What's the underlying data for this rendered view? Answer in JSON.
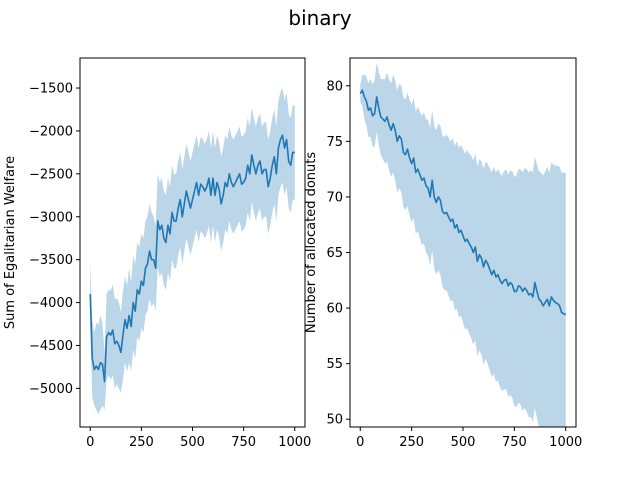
{
  "figure": {
    "title": "binary"
  },
  "chart_data": [
    {
      "type": "line",
      "title": "",
      "xlabel": "",
      "ylabel": "Sum of Egalitarian Welfare",
      "xlim": [
        -50,
        1050
      ],
      "ylim": [
        -5450,
        -1150
      ],
      "xticks": [
        0,
        250,
        500,
        750,
        1000
      ],
      "yticks": [
        -5000,
        -4500,
        -4000,
        -3500,
        -3000,
        -2500,
        -2000,
        -1500
      ],
      "line_color": "#1f77b4",
      "band_color": "#1f77b4",
      "band_opacity": 0.3,
      "series": [
        {
          "x": [
            0,
            10,
            20,
            30,
            40,
            50,
            60,
            70,
            80,
            90,
            100,
            110,
            120,
            130,
            140,
            150,
            160,
            170,
            180,
            190,
            200,
            210,
            220,
            230,
            240,
            250,
            260,
            270,
            280,
            290,
            300,
            310,
            320,
            330,
            340,
            350,
            360,
            370,
            380,
            390,
            400,
            410,
            420,
            430,
            440,
            450,
            460,
            470,
            480,
            490,
            500,
            510,
            520,
            530,
            540,
            550,
            560,
            570,
            580,
            590,
            600,
            610,
            620,
            630,
            640,
            650,
            660,
            670,
            680,
            690,
            700,
            710,
            720,
            730,
            740,
            750,
            760,
            770,
            780,
            790,
            800,
            810,
            820,
            830,
            840,
            850,
            860,
            870,
            880,
            890,
            900,
            910,
            920,
            930,
            940,
            950,
            960,
            970,
            980,
            990,
            1000
          ],
          "y": [
            -3900,
            -4650,
            -4780,
            -4740,
            -4780,
            -4700,
            -4720,
            -4920,
            -4400,
            -4350,
            -4380,
            -4320,
            -4480,
            -4450,
            -4500,
            -4580,
            -4380,
            -4200,
            -4300,
            -4150,
            -4280,
            -4000,
            -4100,
            -3850,
            -3900,
            -3750,
            -3800,
            -3600,
            -3550,
            -3400,
            -3500,
            -3500,
            -3600,
            -3050,
            -3150,
            -3100,
            -3250,
            -3300,
            -3100,
            -3200,
            -2950,
            -3050,
            -3050,
            -2900,
            -2800,
            -3000,
            -2850,
            -2700,
            -2800,
            -2900,
            -2800,
            -2700,
            -2600,
            -2750,
            -2620,
            -2650,
            -2700,
            -2650,
            -2550,
            -2750,
            -2550,
            -2750,
            -2600,
            -2680,
            -2850,
            -2750,
            -2600,
            -2650,
            -2500,
            -2600,
            -2650,
            -2600,
            -2550,
            -2500,
            -2620,
            -2600,
            -2550,
            -2400,
            -2500,
            -2280,
            -2400,
            -2500,
            -2400,
            -2350,
            -2500,
            -2450,
            -2450,
            -2650,
            -2550,
            -2400,
            -2300,
            -2500,
            -2200,
            -2100,
            -2050,
            -2200,
            -2100,
            -2350,
            -2400,
            -2250,
            -2250
          ],
          "lower": [
            -4300,
            -5100,
            -5200,
            -5250,
            -5300,
            -5250,
            -5200,
            -5250,
            -4900,
            -4850,
            -4900,
            -4850,
            -5000,
            -4950,
            -5000,
            -5050,
            -4900,
            -4700,
            -4800,
            -4700,
            -4800,
            -4550,
            -4650,
            -4400,
            -4450,
            -4300,
            -4350,
            -4150,
            -4100,
            -3950,
            -4050,
            -4000,
            -4100,
            -3600,
            -3700,
            -3650,
            -3800,
            -3850,
            -3650,
            -3750,
            -3500,
            -3600,
            -3600,
            -3450,
            -3350,
            -3550,
            -3400,
            -3250,
            -3350,
            -3450,
            -3350,
            -3250,
            -3150,
            -3300,
            -3170,
            -3200,
            -3250,
            -3200,
            -3100,
            -3300,
            -3100,
            -3300,
            -3150,
            -3230,
            -3400,
            -3300,
            -3150,
            -3200,
            -3050,
            -3150,
            -3200,
            -3150,
            -3100,
            -3050,
            -3170,
            -3150,
            -3100,
            -2950,
            -3050,
            -2830,
            -2950,
            -3050,
            -2950,
            -2900,
            -3050,
            -3000,
            -3000,
            -3200,
            -3100,
            -2950,
            -2850,
            -3050,
            -2750,
            -2650,
            -2600,
            -2750,
            -2650,
            -2900,
            -2950,
            -2800,
            -2800
          ],
          "upper": [
            -3500,
            -4200,
            -4350,
            -4230,
            -4260,
            -4150,
            -4240,
            -4590,
            -3900,
            -3850,
            -3860,
            -3790,
            -3960,
            -3950,
            -4000,
            -4110,
            -3860,
            -3700,
            -3800,
            -3600,
            -3760,
            -3450,
            -3550,
            -3300,
            -3350,
            -3200,
            -3250,
            -3050,
            -3000,
            -2850,
            -2950,
            -3000,
            -3100,
            -2500,
            -2600,
            -2550,
            -2700,
            -2750,
            -2550,
            -2650,
            -2400,
            -2500,
            -2500,
            -2350,
            -2250,
            -2450,
            -2300,
            -2150,
            -2250,
            -2350,
            -2250,
            -2150,
            -2050,
            -2200,
            -2070,
            -2100,
            -2150,
            -2100,
            -2000,
            -2200,
            -2000,
            -2200,
            -2050,
            -2130,
            -2300,
            -2200,
            -2050,
            -2100,
            -1950,
            -2050,
            -2100,
            -2050,
            -2000,
            -1950,
            -2070,
            -2050,
            -2000,
            -1850,
            -1950,
            -1730,
            -1850,
            -1950,
            -1850,
            -1800,
            -1950,
            -1900,
            -1900,
            -2100,
            -2000,
            -1850,
            -1750,
            -1950,
            -1650,
            -1550,
            -1500,
            -1650,
            -1550,
            -1800,
            -1850,
            -1700,
            -1700
          ]
        }
      ]
    },
    {
      "type": "line",
      "title": "",
      "xlabel": "",
      "ylabel": "Number of allocated donuts",
      "xlim": [
        -50,
        1050
      ],
      "ylim": [
        49.3,
        82.5
      ],
      "xticks": [
        0,
        250,
        500,
        750,
        1000
      ],
      "yticks": [
        50,
        55,
        60,
        65,
        70,
        75,
        80
      ],
      "line_color": "#1f77b4",
      "band_color": "#1f77b4",
      "band_opacity": 0.3,
      "series": [
        {
          "x": [
            0,
            10,
            20,
            30,
            40,
            50,
            60,
            70,
            80,
            90,
            100,
            110,
            120,
            130,
            140,
            150,
            160,
            170,
            180,
            190,
            200,
            210,
            220,
            230,
            240,
            250,
            260,
            270,
            280,
            290,
            300,
            310,
            320,
            330,
            340,
            350,
            360,
            370,
            380,
            390,
            400,
            410,
            420,
            430,
            440,
            450,
            460,
            470,
            480,
            490,
            500,
            510,
            520,
            530,
            540,
            550,
            560,
            570,
            580,
            590,
            600,
            610,
            620,
            630,
            640,
            650,
            660,
            670,
            680,
            690,
            700,
            710,
            720,
            730,
            740,
            750,
            760,
            770,
            780,
            790,
            800,
            810,
            820,
            830,
            840,
            850,
            860,
            870,
            880,
            890,
            900,
            910,
            920,
            930,
            940,
            950,
            960,
            970,
            980,
            990,
            1000
          ],
          "y": [
            79.3,
            79.6,
            79.0,
            78.6,
            77.8,
            78.0,
            77.3,
            77.5,
            79.0,
            78.0,
            77.2,
            77.0,
            76.8,
            77.2,
            76.5,
            76.0,
            76.6,
            76.0,
            75.0,
            75.5,
            75.2,
            74.0,
            73.8,
            74.3,
            73.5,
            73.0,
            73.5,
            72.2,
            72.5,
            72.0,
            71.5,
            71.7,
            71.0,
            70.8,
            70.0,
            71.5,
            70.0,
            69.5,
            70.0,
            69.7,
            68.7,
            68.5,
            68.6,
            68.2,
            67.8,
            68.0,
            67.2,
            67.5,
            66.8,
            67.0,
            66.5,
            66.0,
            66.2,
            65.8,
            65.5,
            65.0,
            65.5,
            64.2,
            64.8,
            64.5,
            63.7,
            64.3,
            64.0,
            63.5,
            63.0,
            63.4,
            62.8,
            63.0,
            62.5,
            62.2,
            62.5,
            62.6,
            62.0,
            62.3,
            62.1,
            61.5,
            61.5,
            62.0,
            61.9,
            61.5,
            61.8,
            61.6,
            61.2,
            61.3,
            61.0,
            62.3,
            61.5,
            60.8,
            60.6,
            60.2,
            60.5,
            60.8,
            60.2,
            61.0,
            60.7,
            60.5,
            60.4,
            60.2,
            59.6,
            59.5,
            59.4
          ],
          "lower": [
            78.5,
            78.2,
            77.0,
            76.4,
            75.4,
            75.4,
            74.5,
            74.5,
            75.9,
            74.7,
            73.8,
            73.4,
            73.0,
            73.2,
            72.4,
            71.8,
            72.2,
            71.5,
            70.4,
            70.8,
            70.4,
            69.1,
            68.8,
            69.2,
            68.3,
            67.7,
            68.1,
            66.7,
            66.9,
            66.3,
            65.7,
            65.8,
            65.0,
            64.7,
            63.8,
            65.2,
            63.6,
            63.0,
            63.4,
            63.0,
            61.9,
            61.6,
            61.6,
            61.1,
            60.6,
            60.7,
            59.8,
            60.0,
            59.2,
            59.3,
            58.7,
            58.1,
            58.2,
            57.7,
            57.3,
            56.7,
            57.1,
            55.7,
            56.2,
            55.8,
            54.9,
            55.4,
            55.0,
            54.4,
            53.8,
            54.1,
            53.4,
            53.5,
            52.9,
            52.5,
            52.7,
            52.7,
            52.0,
            52.2,
            51.9,
            51.2,
            51.1,
            51.5,
            51.3,
            50.8,
            51.0,
            50.7,
            50.2,
            50.2,
            49.8,
            51.0,
            50.1,
            49.3,
            49.0,
            48.5,
            48.7,
            48.9,
            48.2,
            48.9,
            48.5,
            48.2,
            48.0,
            47.7,
            47.0,
            46.8,
            46.6
          ],
          "upper": [
            80.1,
            81.0,
            81.0,
            80.8,
            80.2,
            80.6,
            80.1,
            80.5,
            82.1,
            81.3,
            80.6,
            80.6,
            80.6,
            81.2,
            80.6,
            80.2,
            81.0,
            80.5,
            79.6,
            80.2,
            80.0,
            78.9,
            78.8,
            79.4,
            78.7,
            78.3,
            78.9,
            77.7,
            78.1,
            77.7,
            77.3,
            77.6,
            77.0,
            76.9,
            76.2,
            77.8,
            76.4,
            76.0,
            76.6,
            76.4,
            75.5,
            75.4,
            75.6,
            75.3,
            75.0,
            75.3,
            74.6,
            75.0,
            74.4,
            74.7,
            74.3,
            73.9,
            74.2,
            73.9,
            73.7,
            73.3,
            73.9,
            72.7,
            73.4,
            73.2,
            72.5,
            73.2,
            73.0,
            72.6,
            72.2,
            72.7,
            72.2,
            72.5,
            72.1,
            71.9,
            72.3,
            72.5,
            72.0,
            72.4,
            72.3,
            71.8,
            71.9,
            72.5,
            72.5,
            72.2,
            72.6,
            72.5,
            72.2,
            72.4,
            72.2,
            73.6,
            72.9,
            72.3,
            72.2,
            71.9,
            72.3,
            72.7,
            72.2,
            73.1,
            72.9,
            72.8,
            72.8,
            72.7,
            72.2,
            72.2,
            72.2
          ]
        }
      ]
    }
  ]
}
